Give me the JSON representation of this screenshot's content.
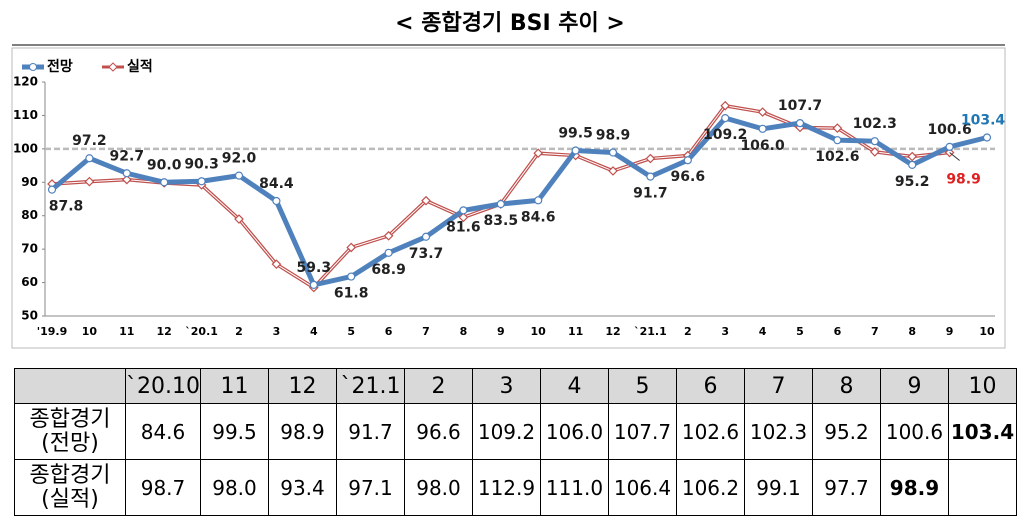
{
  "chart_data": {
    "type": "line",
    "title": "< 종합경기 BSI 추이 >",
    "categories": [
      "'19.9",
      "10",
      "11",
      "12",
      "`20.1",
      "2",
      "3",
      "4",
      "5",
      "6",
      "7",
      "8",
      "9",
      "10",
      "11",
      "12",
      "`21.1",
      "2",
      "3",
      "4",
      "5",
      "6",
      "7",
      "8",
      "9",
      "10"
    ],
    "series": [
      {
        "name": "전망",
        "color": "#4f81bd",
        "values": [
          87.8,
          97.2,
          92.7,
          90.0,
          90.3,
          92.0,
          84.4,
          59.3,
          61.8,
          68.9,
          73.7,
          81.6,
          83.5,
          84.6,
          99.5,
          98.9,
          91.7,
          96.6,
          109.2,
          106.0,
          107.7,
          102.6,
          102.3,
          95.2,
          100.6,
          103.4
        ],
        "value_labels": [
          "87.8",
          "97.2",
          "92.7",
          "90.0",
          "90.3",
          "92.0",
          "84.4",
          "59.3",
          "61.8",
          "68.9",
          "73.7",
          "81.6",
          "83.5",
          "84.6",
          "99.5",
          "98.9",
          "91.7",
          "96.6",
          "109.2",
          "106.0",
          "107.7",
          "102.6",
          "102.3",
          "95.2",
          "100.6",
          "103.4"
        ]
      },
      {
        "name": "실적",
        "color": "#c0504d",
        "values": [
          89.5,
          90.2,
          90.8,
          89.8,
          89.2,
          79.0,
          65.5,
          58.5,
          70.5,
          74.0,
          84.5,
          79.5,
          83.5,
          98.7,
          98.0,
          93.4,
          97.1,
          98.0,
          112.9,
          111.0,
          106.4,
          106.2,
          99.1,
          97.7,
          98.9,
          null
        ]
      }
    ],
    "ylim": [
      50,
      120
    ],
    "yticks": [
      50,
      60,
      70,
      80,
      90,
      100,
      110,
      120
    ],
    "reference_line": 100,
    "legend": "top-left"
  },
  "table": {
    "columns": [
      "`20.10",
      "11",
      "12",
      "`21.1",
      "2",
      "3",
      "4",
      "5",
      "6",
      "7",
      "8",
      "9",
      "10"
    ],
    "rows": [
      {
        "label": [
          "종합경기",
          "(전망)"
        ],
        "cells": [
          "84.6",
          "99.5",
          "98.9",
          "91.7",
          "96.6",
          "109.2",
          "106.0",
          "107.7",
          "102.6",
          "102.3",
          "95.2",
          "100.6",
          "103.4"
        ]
      },
      {
        "label": [
          "종합경기",
          "(실적)"
        ],
        "cells": [
          "98.7",
          "98.0",
          "93.4",
          "97.1",
          "98.0",
          "112.9",
          "111.0",
          "106.4",
          "106.2",
          "99.1",
          "97.7",
          "98.9"
        ]
      }
    ]
  }
}
